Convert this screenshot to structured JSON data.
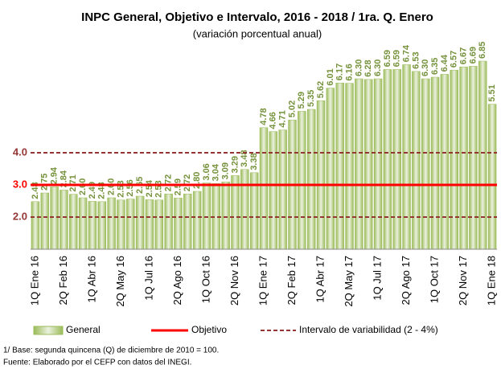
{
  "chart_data": {
    "type": "bar",
    "title": "INPC General, Objetivo e Intervalo, 2016 - 2018 / 1ra. Q. Enero",
    "subtitle": "(variación porcentual anual)",
    "categories": [
      "1Q Ene 16",
      null,
      null,
      "2Q Feb 16",
      null,
      null,
      "1Q Abr 16",
      null,
      null,
      "2Q May 16",
      null,
      null,
      "1Q Jul 16",
      null,
      null,
      "2Q Ago 16",
      null,
      null,
      "1Q Oct 16",
      null,
      null,
      "2Q Nov 16",
      null,
      null,
      "1Q Ene 17",
      null,
      null,
      "2Q Feb 17",
      null,
      null,
      "1Q Abr 17",
      null,
      null,
      "2Q May 17",
      null,
      null,
      "1Q Jul 17",
      null,
      null,
      "2Q Ago 17",
      null,
      null,
      "1Q Oct 17",
      null,
      null,
      "2Q Nov 17",
      null,
      null,
      "1Q Ene 18"
    ],
    "values": [
      2.48,
      2.75,
      2.94,
      2.84,
      2.71,
      2.6,
      2.49,
      2.48,
      2.6,
      2.53,
      2.56,
      2.65,
      2.54,
      2.53,
      2.72,
      2.59,
      2.72,
      2.8,
      3.06,
      3.04,
      3.09,
      3.29,
      3.48,
      3.38,
      4.78,
      4.66,
      4.71,
      5.02,
      5.29,
      5.35,
      5.62,
      6.01,
      6.17,
      6.16,
      6.3,
      6.28,
      6.3,
      6.59,
      6.59,
      6.74,
      6.53,
      6.3,
      6.35,
      6.44,
      6.57,
      6.67,
      6.69,
      6.85,
      5.51
    ],
    "value_labels": [
      "2.48",
      "2.75",
      "2.94",
      "2.84",
      "2.71",
      "2.60",
      "2.49",
      "2.48",
      "2.60",
      "2.53",
      "2.56",
      "2.65",
      "2.54",
      "2.53",
      "2.72",
      "2.59",
      "2.72",
      "2.80",
      "3.06",
      "3.04",
      "3.09",
      "3.29",
      "3.48",
      "3.38",
      "4.78",
      "4.66",
      "4.71",
      "5.02",
      "5.29",
      "5.35",
      "5.62",
      "6.01",
      "6.17",
      "6.16",
      "6.30",
      "6.28",
      "6.30",
      "6.59",
      "6.59",
      "6.74",
      "6.53",
      "6.30",
      "6.35",
      "6.44",
      "6.57",
      "6.67",
      "6.69",
      "6.85",
      "5.51"
    ],
    "color": "#c4d79b",
    "target": 3,
    "target_color": "#ff0000",
    "interval": [
      2,
      4
    ],
    "interval_color": "#943634",
    "ylim": [
      1,
      7.5
    ],
    "yticks": [
      {
        "value": 2,
        "label": "2.0"
      },
      {
        "value": 3,
        "label": "3.0"
      },
      {
        "value": 4,
        "label": "4.0"
      }
    ],
    "legend": [
      "General",
      "Objetivo",
      "Intervalo de variabilidad (2 - 4%)"
    ],
    "notes": [
      "1/ Base: segunda quincena (Q) de diciembre de 2010 = 100.",
      "Fuente: Elaborado por el CEFP con  datos del INEGI."
    ]
  }
}
